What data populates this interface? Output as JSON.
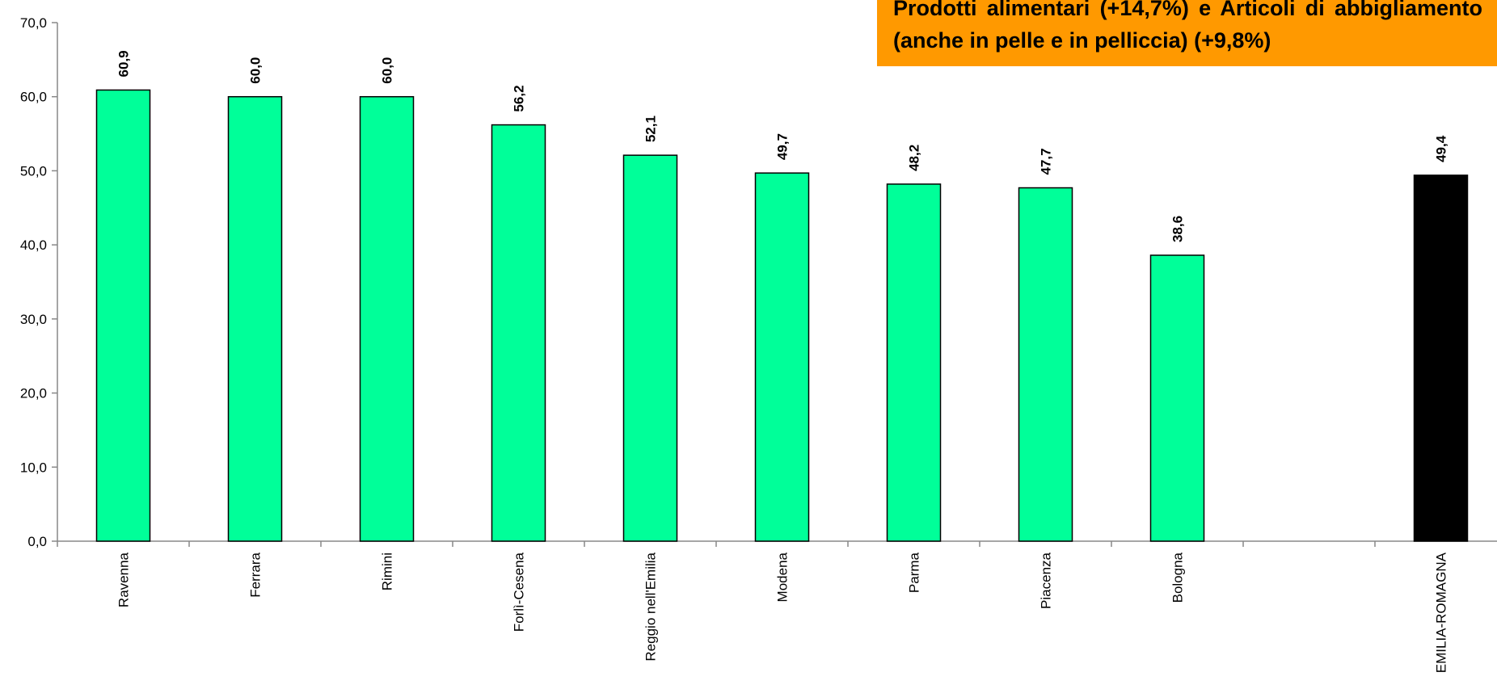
{
  "callout": {
    "text": "Prodotti alimentari (+14,7%) e Articoli di abbigliamento (anche in pelle e in pelliccia) (+9,8%)"
  },
  "colors": {
    "bar": "#00ff99",
    "total_bar": "#000000",
    "callout_bg": "#ff9900"
  },
  "chart_data": {
    "type": "bar",
    "title": "",
    "xlabel": "",
    "ylabel": "",
    "ylim": [
      0,
      70
    ],
    "yticks": [
      "0,0",
      "10,0",
      "20,0",
      "30,0",
      "40,0",
      "50,0",
      "60,0",
      "70,0"
    ],
    "grid": false,
    "categories": [
      "Ravenna",
      "Ferrara",
      "Rimini",
      "Forlì-Cesena",
      "Reggio nell'Emilia",
      "Modena",
      "Parma",
      "Piacenza",
      "Bologna",
      "",
      "EMILIA-ROMAGNA"
    ],
    "values": [
      60.9,
      60.0,
      60.0,
      56.2,
      52.1,
      49.7,
      48.2,
      47.7,
      38.6,
      null,
      49.4
    ],
    "value_labels": [
      "60,9",
      "60,0",
      "60,0",
      "56,2",
      "52,1",
      "49,7",
      "48,2",
      "47,7",
      "38,6",
      "",
      "49,4"
    ]
  }
}
